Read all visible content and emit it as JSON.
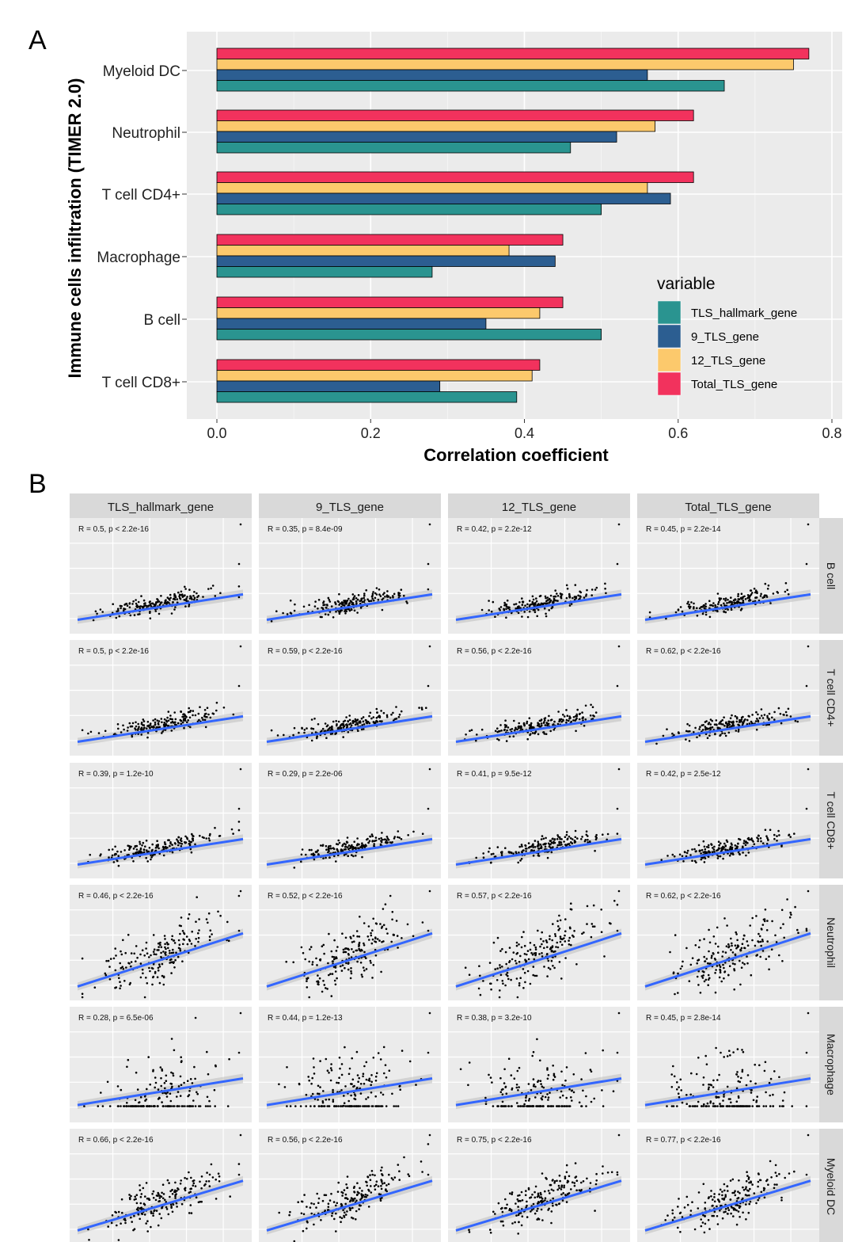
{
  "panel_a": {
    "label": "A",
    "chart_data": {
      "type": "bar",
      "orientation": "horizontal",
      "xlabel": "Correlation coefficient",
      "ylabel": "Immune cells infiltration (TIMER 2.0)",
      "xlim": [
        0,
        0.8
      ],
      "x_ticks": [
        "0.0",
        "0.2",
        "0.4",
        "0.6",
        "0.8"
      ],
      "grid": true,
      "categories": [
        "Myeloid DC",
        "Neutrophil",
        "T cell CD4+",
        "Macrophage",
        "B cell",
        "T cell CD8+"
      ],
      "legend_title": "variable",
      "legend_position": "right-inside",
      "series": [
        {
          "name": "Total_TLS_gene",
          "color": "#f2325d",
          "values": [
            0.77,
            0.62,
            0.62,
            0.45,
            0.45,
            0.42
          ]
        },
        {
          "name": "12_TLS_gene",
          "color": "#fcc96c",
          "values": [
            0.75,
            0.57,
            0.56,
            0.38,
            0.42,
            0.41
          ]
        },
        {
          "name": "9_TLS_gene",
          "color": "#2c5e91",
          "values": [
            0.56,
            0.52,
            0.59,
            0.44,
            0.35,
            0.29
          ]
        },
        {
          "name": "TLS_hallmark_gene",
          "color": "#2a9490",
          "values": [
            0.66,
            0.46,
            0.5,
            0.28,
            0.5,
            0.39
          ]
        }
      ],
      "legend_order": [
        "TLS_hallmark_gene",
        "9_TLS_gene",
        "12_TLS_gene",
        "Total_TLS_gene"
      ]
    }
  },
  "panel_b": {
    "label": "B",
    "chart_data": {
      "type": "scatter",
      "facet_columns": [
        "TLS_hallmark_gene",
        "9_TLS_gene",
        "12_TLS_gene",
        "Total_TLS_gene"
      ],
      "facet_rows": [
        "B cell",
        "T cell CD4+",
        "T cell CD8+",
        "Neutrophil",
        "Macrophage",
        "Myeloid DC"
      ],
      "fit": "linear regression with confidence band",
      "fit_color": "#3366ff",
      "annotations": [
        [
          "R = 0.5, p < 2.2e-16",
          "R = 0.35, p = 8.4e-09",
          "R = 0.42, p = 2.2e-12",
          "R = 0.45, p = 2.2e-14"
        ],
        [
          "R = 0.5, p < 2.2e-16",
          "R = 0.59, p < 2.2e-16",
          "R = 0.56, p < 2.2e-16",
          "R = 0.62, p < 2.2e-16"
        ],
        [
          "R = 0.39, p = 1.2e-10",
          "R = 0.29, p = 2.2e-06",
          "R = 0.41, p = 9.5e-12",
          "R = 0.42, p = 2.5e-12"
        ],
        [
          "R = 0.46, p < 2.2e-16",
          "R = 0.52, p < 2.2e-16",
          "R = 0.57, p < 2.2e-16",
          "R = 0.62, p < 2.2e-16"
        ],
        [
          "R = 0.28, p = 6.5e-06",
          "R = 0.44, p = 1.2e-13",
          "R = 0.38, p = 3.2e-10",
          "R = 0.45, p = 2.8e-14"
        ],
        [
          "R = 0.66, p < 2.2e-16",
          "R = 0.56, p < 2.2e-16",
          "R = 0.75, p < 2.2e-16",
          "R = 0.77, p < 2.2e-16"
        ]
      ]
    }
  }
}
